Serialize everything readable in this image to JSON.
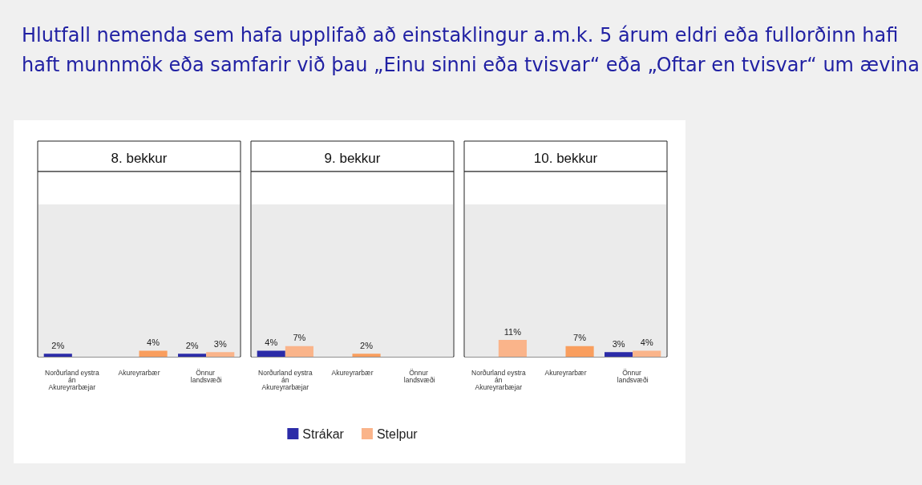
{
  "chart_data": [
    {
      "type": "bar",
      "title": "Hlutfall nemenda sem hafa upplifað að einstaklingur a.m.k. 5 árum eldri eða fullorðinn hafi haft munnmök eða samfarir við þau „Einu sinni eða tvisvar“ eða „Oftar en tvisvar“ um ævina",
      "subtitle": "8. bekkur",
      "categories": [
        "Norðurland eystra án Akureyrarbæjar",
        "Akureyrarbær",
        "Önnur landsvæði"
      ],
      "ylim": [
        0,
        100
      ],
      "tick_labels": "x",
      "series": [
        {
          "color": "#2b2ba8",
          "values": [
            2,
            null,
            2
          ],
          "value_labels": [
            "2%",
            null,
            "2%"
          ]
        },
        {
          "color": "#fab48a",
          "colors": [
            "#fab48a",
            "#f99e5e",
            "#fab48a"
          ],
          "values": [
            null,
            4,
            3
          ],
          "value_labels": [
            null,
            "4%",
            "3%"
          ]
        }
      ]
    },
    {
      "type": "bar",
      "subtitle": "9. bekkur",
      "categories": [
        "Norðurland eystra án Akureyrarbæjar",
        "Akureyrarbær",
        "Önnur landsvæði"
      ],
      "ylim": [
        0,
        100
      ],
      "tick_labels": "x",
      "legend": "bottom",
      "series": [
        {
          "name": "Strákar",
          "color": "#2b2ba8",
          "values": [
            4,
            null,
            null
          ],
          "value_labels": [
            "4%",
            null,
            null
          ]
        },
        {
          "name": "Stelpur",
          "color": "#fab48a",
          "colors": [
            "#fab48a",
            "#f99e5e",
            "#fab48a"
          ],
          "values": [
            7,
            2,
            null
          ],
          "value_labels": [
            "7%",
            "2%",
            null
          ]
        }
      ]
    },
    {
      "type": "bar",
      "subtitle": "10. bekkur",
      "categories": [
        "Norðurland eystra án Akureyrarbæjar",
        "Akureyrarbær",
        "Önnur landsvæði"
      ],
      "ylim": [
        0,
        100
      ],
      "tick_labels": "x",
      "series": [
        {
          "color": "#2b2ba8",
          "values": [
            null,
            null,
            3
          ],
          "value_labels": [
            null,
            null,
            "3%"
          ]
        },
        {
          "color": "#fab48a",
          "colors": [
            "#fab48a",
            "#f99e5e",
            "#fab48a"
          ],
          "values": [
            11,
            7,
            4
          ],
          "value_labels": [
            "11%",
            "7%",
            "4%"
          ]
        }
      ]
    }
  ]
}
